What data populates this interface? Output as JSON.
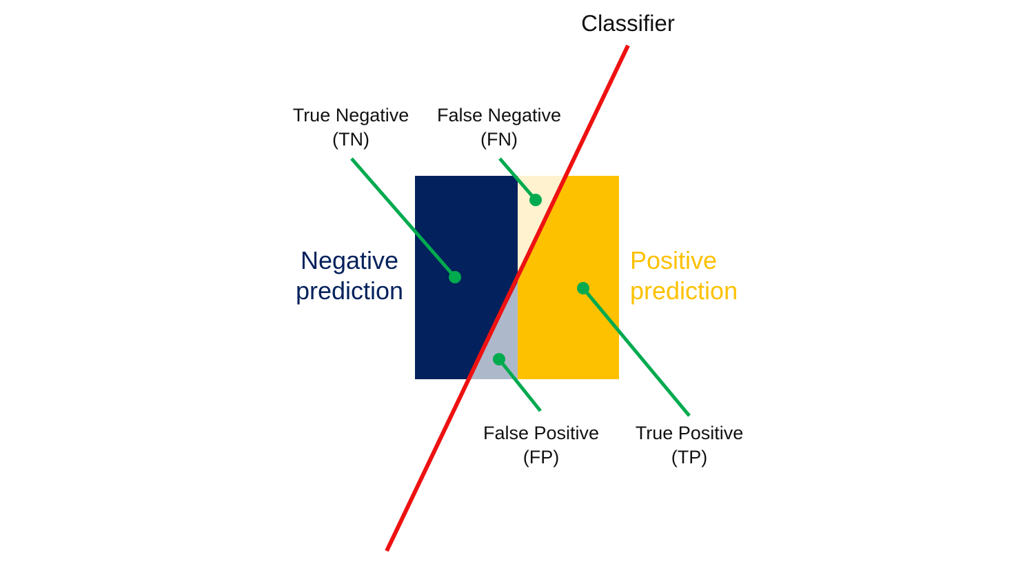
{
  "classifier_label": "Classifier",
  "negative": {
    "line1": "Negative",
    "line2": "prediction"
  },
  "positive": {
    "line1": "Positive",
    "line2": "prediction"
  },
  "regions": {
    "tn": {
      "line1": "True Negative",
      "line2": "(TN)"
    },
    "fn": {
      "line1": "False Negative",
      "line2": "(FN)"
    },
    "fp": {
      "line1": "False Positive",
      "line2": "(FP)"
    },
    "tp": {
      "line1": "True Positive",
      "line2": "(TP)"
    }
  },
  "colors": {
    "negative": "#03215C",
    "negative_light": "#AEB8CB",
    "positive": "#FDC100",
    "positive_light": "#FEF2CF",
    "classifier": "#EE1111",
    "pointer": "#00AA4F",
    "text": "#111111"
  }
}
